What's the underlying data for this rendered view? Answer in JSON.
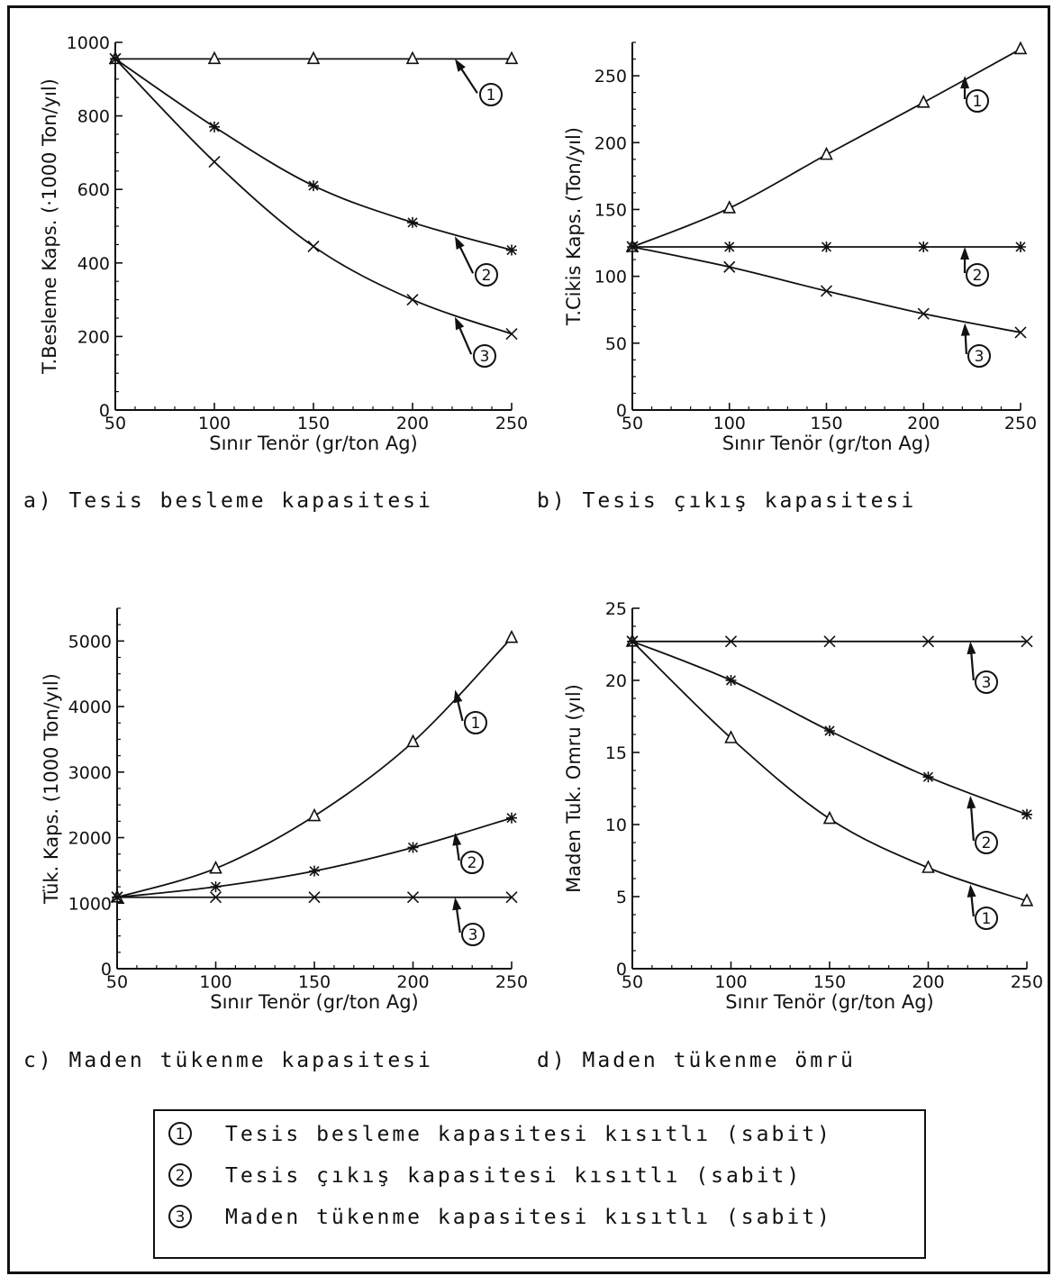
{
  "chart_data": [
    {
      "type": "line",
      "ylabel": "T.Besleme Kaps. (·1000 Ton/yıl)",
      "xlabel": "Sınır Tenör (gr/ton Ag)",
      "caption": "a) Tesis besleme kapasitesi",
      "x": [
        50,
        100,
        150,
        200,
        250
      ],
      "xlim": [
        50,
        250
      ],
      "ylim": [
        0,
        1000
      ],
      "xticks": [
        "50",
        "100",
        "150",
        "200",
        "250"
      ],
      "yticks": [
        "0",
        "200",
        "400",
        "600",
        "800",
        "1000"
      ],
      "series": [
        {
          "name": "1",
          "marker": "triangle",
          "values": [
            955,
            955,
            955,
            955,
            955
          ]
        },
        {
          "name": "2",
          "marker": "asterisk",
          "values": [
            955,
            770,
            610,
            510,
            435
          ]
        },
        {
          "name": "3",
          "marker": "x",
          "values": [
            955,
            675,
            445,
            300,
            207
          ]
        }
      ]
    },
    {
      "type": "line",
      "ylabel": "T.Cikis Kaps. (Ton/yıl)",
      "xlabel": "Sınır Tenör (gr/ton Ag)",
      "caption": "b) Tesis çıkış kapasitesi",
      "x": [
        50,
        100,
        150,
        200,
        250
      ],
      "xlim": [
        50,
        250
      ],
      "ylim": [
        0,
        275
      ],
      "xticks": [
        "50",
        "100",
        "150",
        "200",
        "250"
      ],
      "yticks": [
        "0",
        "50",
        "100",
        "150",
        "200",
        "250"
      ],
      "series": [
        {
          "name": "1",
          "marker": "triangle",
          "values": [
            122,
            151,
            191,
            230,
            270
          ]
        },
        {
          "name": "2",
          "marker": "asterisk",
          "values": [
            122,
            122,
            122,
            122,
            122
          ]
        },
        {
          "name": "3",
          "marker": "x",
          "values": [
            122,
            107,
            89,
            72,
            58
          ]
        }
      ]
    },
    {
      "type": "line",
      "ylabel": "Tük. Kaps. (1000 Ton/yıl)",
      "xlabel": "Sınır Tenör (gr/ton Ag)",
      "caption": "c) Maden tükenme kapasitesi",
      "x": [
        50,
        100,
        150,
        200,
        250
      ],
      "xlim": [
        50,
        250
      ],
      "ylim": [
        0,
        5500
      ],
      "xticks": [
        "50",
        "100",
        "150",
        "200",
        "250"
      ],
      "yticks": [
        "0",
        "1000",
        "2000",
        "3000",
        "4000",
        "5000"
      ],
      "series": [
        {
          "name": "1",
          "marker": "triangle",
          "values": [
            1090,
            1530,
            2330,
            3460,
            5050
          ]
        },
        {
          "name": "2",
          "marker": "asterisk",
          "values": [
            1090,
            1250,
            1490,
            1850,
            2300
          ]
        },
        {
          "name": "3",
          "marker": "x",
          "values": [
            1090,
            1090,
            1090,
            1090,
            1090
          ]
        }
      ]
    },
    {
      "type": "line",
      "ylabel": "Maden Tuk. Omru (yıl)",
      "xlabel": "Sınır Tenör (gr/ton Ag)",
      "caption": "d) Maden tükenme ömrü",
      "x": [
        50,
        100,
        150,
        200,
        250
      ],
      "xlim": [
        50,
        250
      ],
      "ylim": [
        0,
        25
      ],
      "xticks": [
        "50",
        "100",
        "150",
        "200",
        "250"
      ],
      "yticks": [
        "0",
        "5",
        "10",
        "15",
        "20",
        "25"
      ],
      "series": [
        {
          "name": "1",
          "marker": "triangle",
          "values": [
            22.7,
            16.0,
            10.4,
            7.0,
            4.7
          ]
        },
        {
          "name": "2",
          "marker": "asterisk",
          "values": [
            22.7,
            20.0,
            16.5,
            13.3,
            10.7
          ]
        },
        {
          "name": "3",
          "marker": "x",
          "values": [
            22.7,
            22.7,
            22.7,
            22.7,
            22.7
          ]
        }
      ]
    }
  ],
  "legend": {
    "items": [
      {
        "num": "1",
        "text": "Tesis besleme kapasitesi kısıtlı (sabit)"
      },
      {
        "num": "2",
        "text": "Tesis çıkış kapasitesi kısıtlı (sabit)"
      },
      {
        "num": "3",
        "text": "Maden tükenme kapasitesi kısıtlı (sabit)"
      }
    ]
  },
  "colors": {
    "ink": "#111111",
    "paper": "#ffffff"
  }
}
